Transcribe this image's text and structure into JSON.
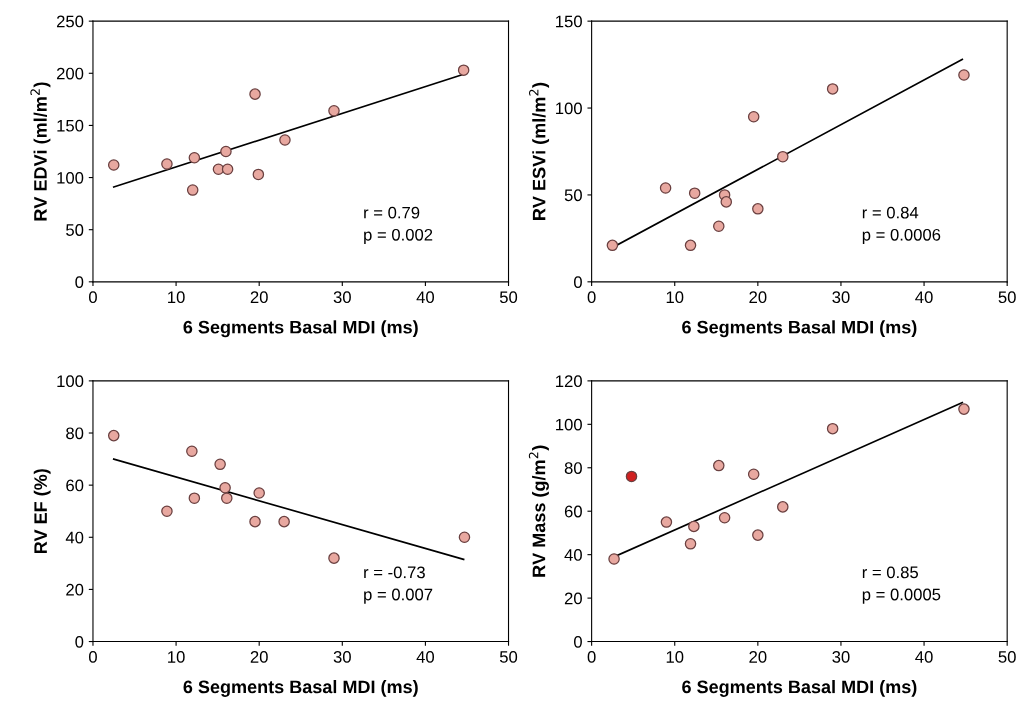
{
  "chart_data": [
    {
      "type": "scatter",
      "xlabel": "6 Segments Basal MDI (ms)",
      "ylabel": "RV EDVi (ml/m$^{2}$)",
      "xlim": [
        0,
        50
      ],
      "xticks": [
        0,
        10,
        20,
        30,
        40,
        50
      ],
      "ylim": [
        0,
        250
      ],
      "yticks": [
        0,
        50,
        100,
        150,
        200,
        250
      ],
      "grid": false,
      "annotations": [
        "r = 0.79",
        "p = 0.002"
      ],
      "series": [
        {
          "marker": "circle",
          "color": "#e8a8a0",
          "x": [
            2.5,
            8.9,
            12.2,
            12.0,
            15.1,
            16.0,
            16.2,
            19.5,
            19.9,
            23.1,
            29.0,
            44.6
          ],
          "values": [
            112,
            113,
            119,
            88,
            108,
            125,
            108,
            180,
            103,
            136,
            164,
            203
          ]
        },
        {
          "type": "line",
          "color": "#000000",
          "x": [
            2.5,
            44.6
          ],
          "values": [
            91,
            199
          ]
        }
      ]
    },
    {
      "type": "scatter",
      "xlabel": "6 Segments Basal MDI (ms)",
      "ylabel": "RV ESVi (ml/m$^{2}$)",
      "xlim": [
        0,
        50
      ],
      "xticks": [
        0,
        10,
        20,
        30,
        40,
        50
      ],
      "ylim": [
        0,
        150
      ],
      "yticks": [
        0,
        50,
        100,
        150
      ],
      "grid": false,
      "annotations": [
        "r = 0.84",
        "p = 0.0006"
      ],
      "series": [
        {
          "marker": "circle",
          "color": "#e8a8a0",
          "x": [
            2.5,
            8.9,
            12.4,
            11.9,
            15.3,
            16.0,
            16.2,
            19.5,
            20.0,
            23.0,
            29.0,
            44.8
          ],
          "values": [
            21,
            54,
            51,
            21,
            32,
            50,
            46,
            95,
            42,
            72,
            111,
            119
          ]
        },
        {
          "type": "line",
          "color": "#000000",
          "x": [
            3.0,
            44.6
          ],
          "values": [
            21,
            128
          ]
        }
      ]
    },
    {
      "type": "scatter",
      "xlabel": "6 Segments Basal MDI (ms)",
      "ylabel": "RV EF (%)",
      "xlim": [
        0,
        50
      ],
      "xticks": [
        0,
        10,
        20,
        30,
        40,
        50
      ],
      "ylim": [
        0,
        100
      ],
      "yticks": [
        0,
        20,
        40,
        60,
        80,
        100
      ],
      "grid": false,
      "annotations": [
        "r = -0.73",
        "p = 0.007"
      ],
      "series": [
        {
          "marker": "circle",
          "color": "#e8a8a0",
          "x": [
            2.5,
            8.9,
            11.9,
            12.2,
            15.3,
            15.9,
            16.1,
            19.5,
            20.0,
            23.0,
            29.0,
            44.7
          ],
          "values": [
            79,
            50,
            73,
            55,
            68,
            59,
            55,
            46,
            57,
            46,
            32,
            40
          ]
        },
        {
          "type": "line",
          "color": "#000000",
          "x": [
            2.5,
            44.6
          ],
          "values": [
            70,
            31.5
          ]
        }
      ]
    },
    {
      "type": "scatter",
      "xlabel": "6 Segments Basal MDI (ms)",
      "ylabel": "RV Mass (g/m$^{2}$)",
      "xlim": [
        0,
        50
      ],
      "xticks": [
        0,
        10,
        20,
        30,
        40,
        50
      ],
      "ylim": [
        0,
        120
      ],
      "yticks": [
        0,
        20,
        40,
        60,
        80,
        100,
        120
      ],
      "grid": false,
      "annotations": [
        "r = 0.85",
        "p = 0.0005"
      ],
      "series": [
        {
          "marker": "circle",
          "color": "#e8a8a0",
          "x": [
            2.7,
            9.0,
            11.9,
            12.3,
            15.3,
            16.0,
            19.5,
            20.0,
            23.0,
            29.0,
            44.8
          ],
          "values": [
            38,
            55,
            45,
            53,
            81,
            57,
            77,
            49,
            62,
            98,
            107
          ]
        },
        {
          "marker": "circle",
          "color": "#d02020",
          "x": [
            4.8
          ],
          "values": [
            76
          ]
        },
        {
          "type": "line",
          "color": "#000000",
          "x": [
            2.7,
            44.6
          ],
          "values": [
            39,
            110
          ]
        }
      ]
    }
  ]
}
